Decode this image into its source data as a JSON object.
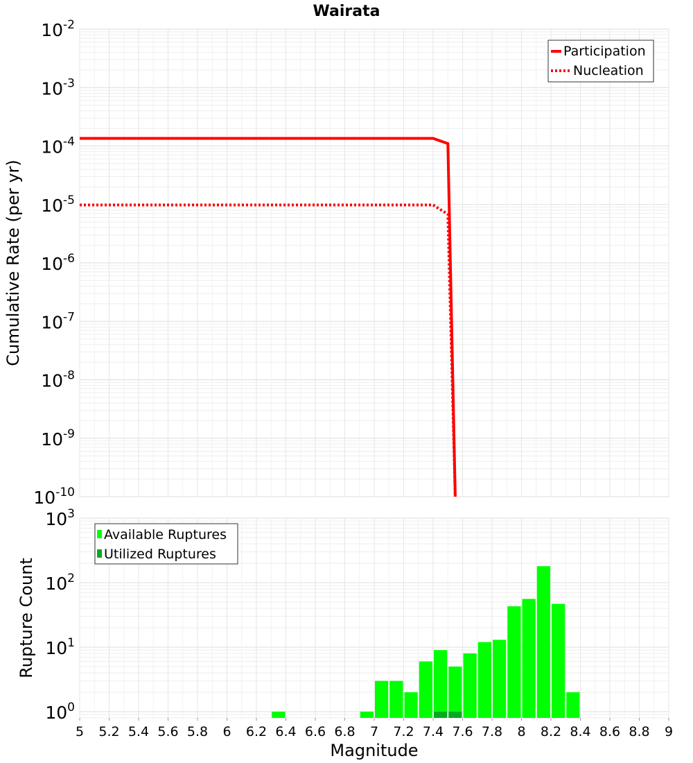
{
  "chart_data": [
    {
      "type": "line",
      "title": "Wairata",
      "xlabel": "",
      "ylabel": "Cumulative Rate (per yr)",
      "xlim": [
        5,
        9
      ],
      "ylim": [
        1e-10,
        0.01
      ],
      "yscale": "log",
      "grid": true,
      "legend_position": "top-right",
      "y_ticks": [
        {
          "base": "10",
          "exp": "-10"
        },
        {
          "base": "10",
          "exp": "-9"
        },
        {
          "base": "10",
          "exp": "-8"
        },
        {
          "base": "10",
          "exp": "-7"
        },
        {
          "base": "10",
          "exp": "-6"
        },
        {
          "base": "10",
          "exp": "-5"
        },
        {
          "base": "10",
          "exp": "-4"
        },
        {
          "base": "10",
          "exp": "-3"
        },
        {
          "base": "10",
          "exp": "-2"
        }
      ],
      "series": [
        {
          "name": "Participation",
          "color": "#ff0000",
          "style": "solid",
          "points": [
            [
              5.0,
              0.000135
            ],
            [
              7.4,
              0.000135
            ],
            [
              7.5,
              0.00011
            ],
            [
              7.55,
              1e-10
            ]
          ]
        },
        {
          "name": "Nucleation",
          "color": "#ff0000",
          "style": "dotted",
          "points": [
            [
              5.0,
              9.8e-06
            ],
            [
              7.4,
              9.8e-06
            ],
            [
              7.5,
              6.8e-06
            ],
            [
              7.55,
              1e-10
            ]
          ]
        }
      ]
    },
    {
      "type": "bar",
      "title": "",
      "xlabel": "Magnitude",
      "ylabel": "Rupture Count",
      "xlim": [
        5,
        9
      ],
      "ylim": [
        0.8,
        1000
      ],
      "yscale": "log",
      "grid": true,
      "legend_position": "top-left",
      "bar_width": 0.1,
      "x_ticks": [
        "5",
        "5.2",
        "5.4",
        "5.6",
        "5.8",
        "6",
        "6.2",
        "6.4",
        "6.6",
        "6.8",
        "7",
        "7.2",
        "7.4",
        "7.6",
        "7.8",
        "8",
        "8.2",
        "8.4",
        "8.6",
        "8.8",
        "9"
      ],
      "y_ticks": [
        {
          "base": "10",
          "exp": "0"
        },
        {
          "base": "10",
          "exp": "1"
        },
        {
          "base": "10",
          "exp": "2"
        },
        {
          "base": "10",
          "exp": "3"
        }
      ],
      "series": [
        {
          "name": "Available Ruptures",
          "color": "#00ff00",
          "x": [
            6.35,
            6.95,
            7.05,
            7.15,
            7.25,
            7.35,
            7.45,
            7.55,
            7.65,
            7.75,
            7.85,
            7.95,
            8.05,
            8.15,
            8.25,
            8.35
          ],
          "values": [
            1,
            1,
            3,
            3,
            2,
            6,
            9,
            5,
            8,
            12,
            13,
            43,
            56,
            180,
            47,
            2
          ]
        },
        {
          "name": "Utilized Ruptures",
          "color": "#00aa22",
          "x": [
            7.45,
            7.55
          ],
          "values": [
            1,
            1
          ]
        }
      ]
    }
  ]
}
